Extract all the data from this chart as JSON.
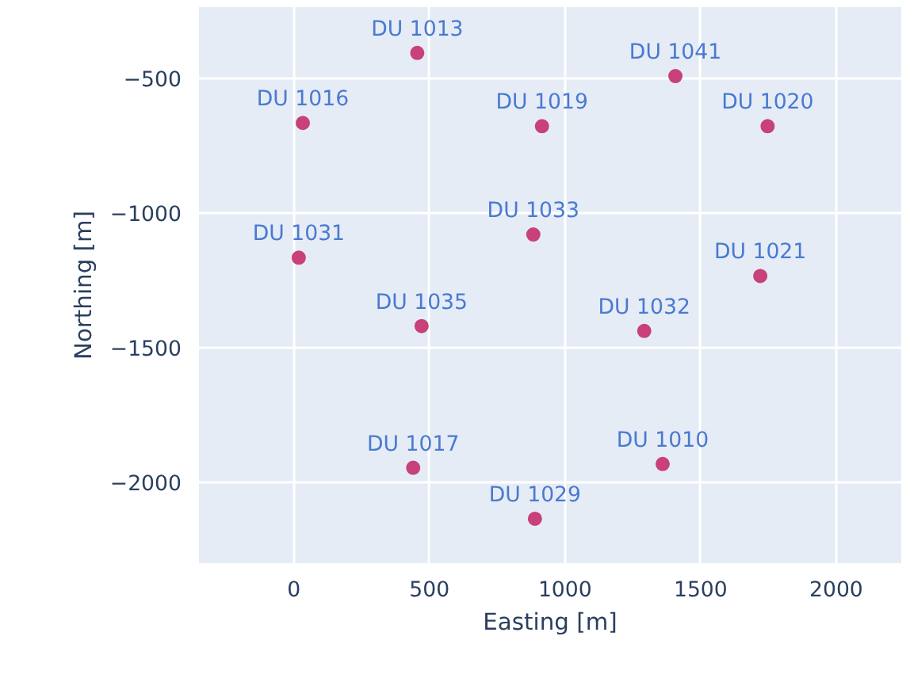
{
  "chart_data": {
    "type": "scatter",
    "xlabel": "Easting [m]",
    "ylabel": "Northing [m]",
    "x": [
      455,
      33,
      915,
      18,
      883,
      471,
      1407,
      1747,
      1720,
      1292,
      440,
      889,
      1360
    ],
    "series": [
      {
        "color": "#c8417a",
        "values": [
          -406,
          -666,
          -678,
          -1166,
          -1080,
          -1420,
          -492,
          -678,
          -1234,
          -1438,
          -1946,
          -2135,
          -1932
        ]
      }
    ],
    "annotations": [
      {
        "text": "DU 1013",
        "x": 455,
        "y": -406
      },
      {
        "text": "DU 1016",
        "x": 33,
        "y": -666
      },
      {
        "text": "DU 1019",
        "x": 915,
        "y": -678
      },
      {
        "text": "DU 1031",
        "x": 18,
        "y": -1166
      },
      {
        "text": "DU 1033",
        "x": 883,
        "y": -1080
      },
      {
        "text": "DU 1035",
        "x": 471,
        "y": -1420
      },
      {
        "text": "DU 1041",
        "x": 1407,
        "y": -492
      },
      {
        "text": "DU 1020",
        "x": 1747,
        "y": -678
      },
      {
        "text": "DU 1021",
        "x": 1720,
        "y": -1234
      },
      {
        "text": "DU 1032",
        "x": 1292,
        "y": -1438
      },
      {
        "text": "DU 1017",
        "x": 440,
        "y": -1946
      },
      {
        "text": "DU 1029",
        "x": 889,
        "y": -2135
      },
      {
        "text": "DU 1010",
        "x": 1360,
        "y": -1932
      }
    ],
    "xlim": [
      -350,
      2240
    ],
    "ylim": [
      -2300,
      -236
    ],
    "xticks": [
      0,
      500,
      1000,
      1500,
      2000
    ],
    "yticks": [
      -500,
      -1000,
      -1500,
      -2000
    ],
    "grid": true,
    "marker": "circle"
  }
}
